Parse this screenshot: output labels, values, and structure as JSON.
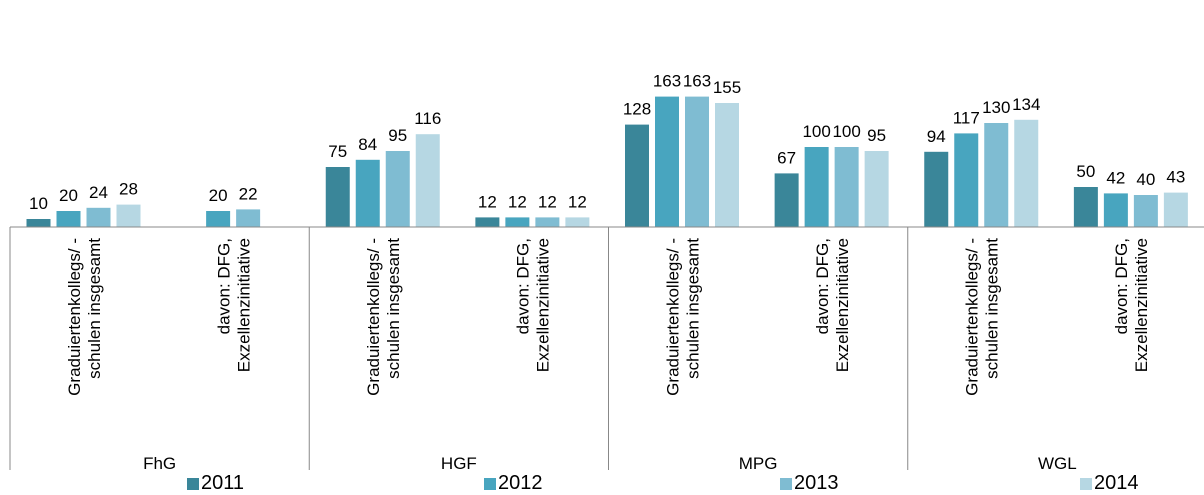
{
  "chart_data": {
    "type": "bar",
    "groups": [
      "FhG",
      "HGF",
      "MPG",
      "WGL"
    ],
    "subcategories": [
      "Graduiertenkollegs/ -\nschulen insgesamt",
      "davon: DFG,\nExzellenzinitiative"
    ],
    "series": [
      {
        "name": "2011",
        "color": "#3a8699",
        "values": [
          10,
          null,
          75,
          12,
          128,
          67,
          94,
          50
        ]
      },
      {
        "name": "2012",
        "color": "#48a5bf",
        "values": [
          20,
          20,
          84,
          12,
          163,
          100,
          117,
          42
        ]
      },
      {
        "name": "2013",
        "color": "#7fbcd2",
        "values": [
          24,
          22,
          95,
          12,
          163,
          100,
          130,
          40
        ]
      },
      {
        "name": "2014",
        "color": "#b6d7e3",
        "values": [
          28,
          null,
          116,
          12,
          155,
          95,
          134,
          43
        ]
      }
    ],
    "ylim": [
      0,
      170
    ],
    "grid": false,
    "legend_position": "bottom"
  }
}
